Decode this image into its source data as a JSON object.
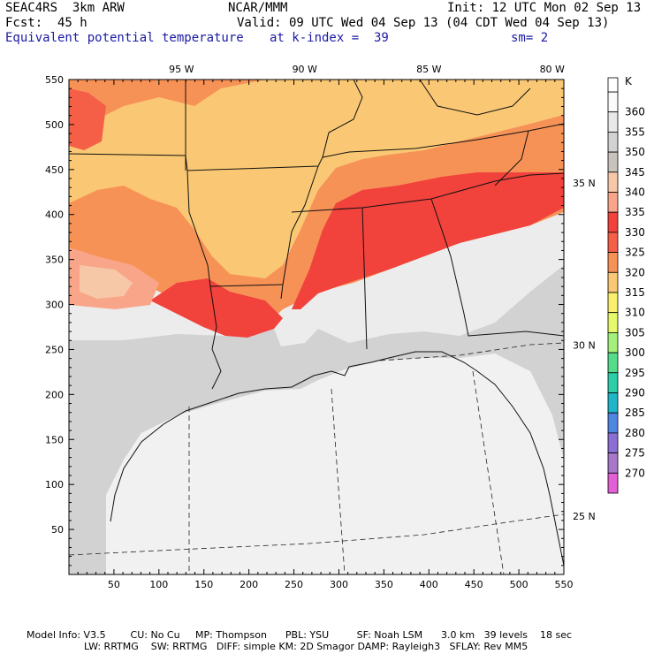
{
  "header": {
    "model": "SEAC4RS  3km ARW",
    "center": "NCAR/MMM",
    "init": "Init: 12 UTC Mon 02 Sep 13",
    "fcst": "Fcst:  45 h",
    "valid": "Valid: 09 UTC Wed 04 Sep 13 (04 CDT Wed 04 Sep 13)",
    "field": "Equivalent potential temperature",
    "level": "at k-index =  39",
    "smooth": "sm= 2"
  },
  "axes": {
    "x_ticks": [
      50,
      100,
      150,
      200,
      250,
      300,
      350,
      400,
      450,
      500,
      550
    ],
    "y_ticks": [
      50,
      100,
      150,
      200,
      250,
      300,
      350,
      400,
      450,
      500,
      550
    ],
    "x_range": [
      0,
      550
    ],
    "y_range": [
      0,
      550
    ],
    "lon_labels": [
      {
        "label": "95 W",
        "x": 125
      },
      {
        "label": "90 W",
        "x": 262
      },
      {
        "label": "85 W",
        "x": 400
      },
      {
        "label": "80 W",
        "x": 537
      }
    ],
    "lat_labels": [
      {
        "label": "35 N",
        "y": 435
      },
      {
        "label": "30 N",
        "y": 255
      },
      {
        "label": "25 N",
        "y": 65
      }
    ]
  },
  "colorbar": {
    "unit": "K",
    "levels": [
      {
        "value": "360",
        "color": "#fafafa"
      },
      {
        "value": "355",
        "color": "#e8e8e8"
      },
      {
        "value": "350",
        "color": "#d2d2d2"
      },
      {
        "value": "345",
        "color": "#c9c3bd"
      },
      {
        "value": "340",
        "color": "#f7c8a8"
      },
      {
        "value": "335",
        "color": "#f9a58a"
      },
      {
        "value": "330",
        "color": "#f2423c"
      },
      {
        "value": "325",
        "color": "#f55f48"
      },
      {
        "value": "320",
        "color": "#f79257"
      },
      {
        "value": "315",
        "color": "#fac874"
      },
      {
        "value": "310",
        "color": "#f9f06e"
      },
      {
        "value": "305",
        "color": "#e6f86b"
      },
      {
        "value": "300",
        "color": "#a3f07a"
      },
      {
        "value": "295",
        "color": "#55dc8b"
      },
      {
        "value": "290",
        "color": "#2ccfa8"
      },
      {
        "value": "285",
        "color": "#1fb6c8"
      },
      {
        "value": "280",
        "color": "#4f86e0"
      },
      {
        "value": "275",
        "color": "#8b6fd2"
      },
      {
        "value": "270",
        "color": "#a778c9"
      },
      {
        "value": "",
        "color": "#e35fd6"
      }
    ]
  },
  "footer": {
    "line1": "Model Info: V3.5        CU: No Cu     MP: Thompson      PBL: YSU         SF: Noah LSM      3.0 km   39 levels    18 sec",
    "line2": "LW: RRTMG    SW: RRTMG   DIFF: simple KM: 2D Smagor DAMP: Rayleigh3   SFLAY: Rev MM5"
  }
}
